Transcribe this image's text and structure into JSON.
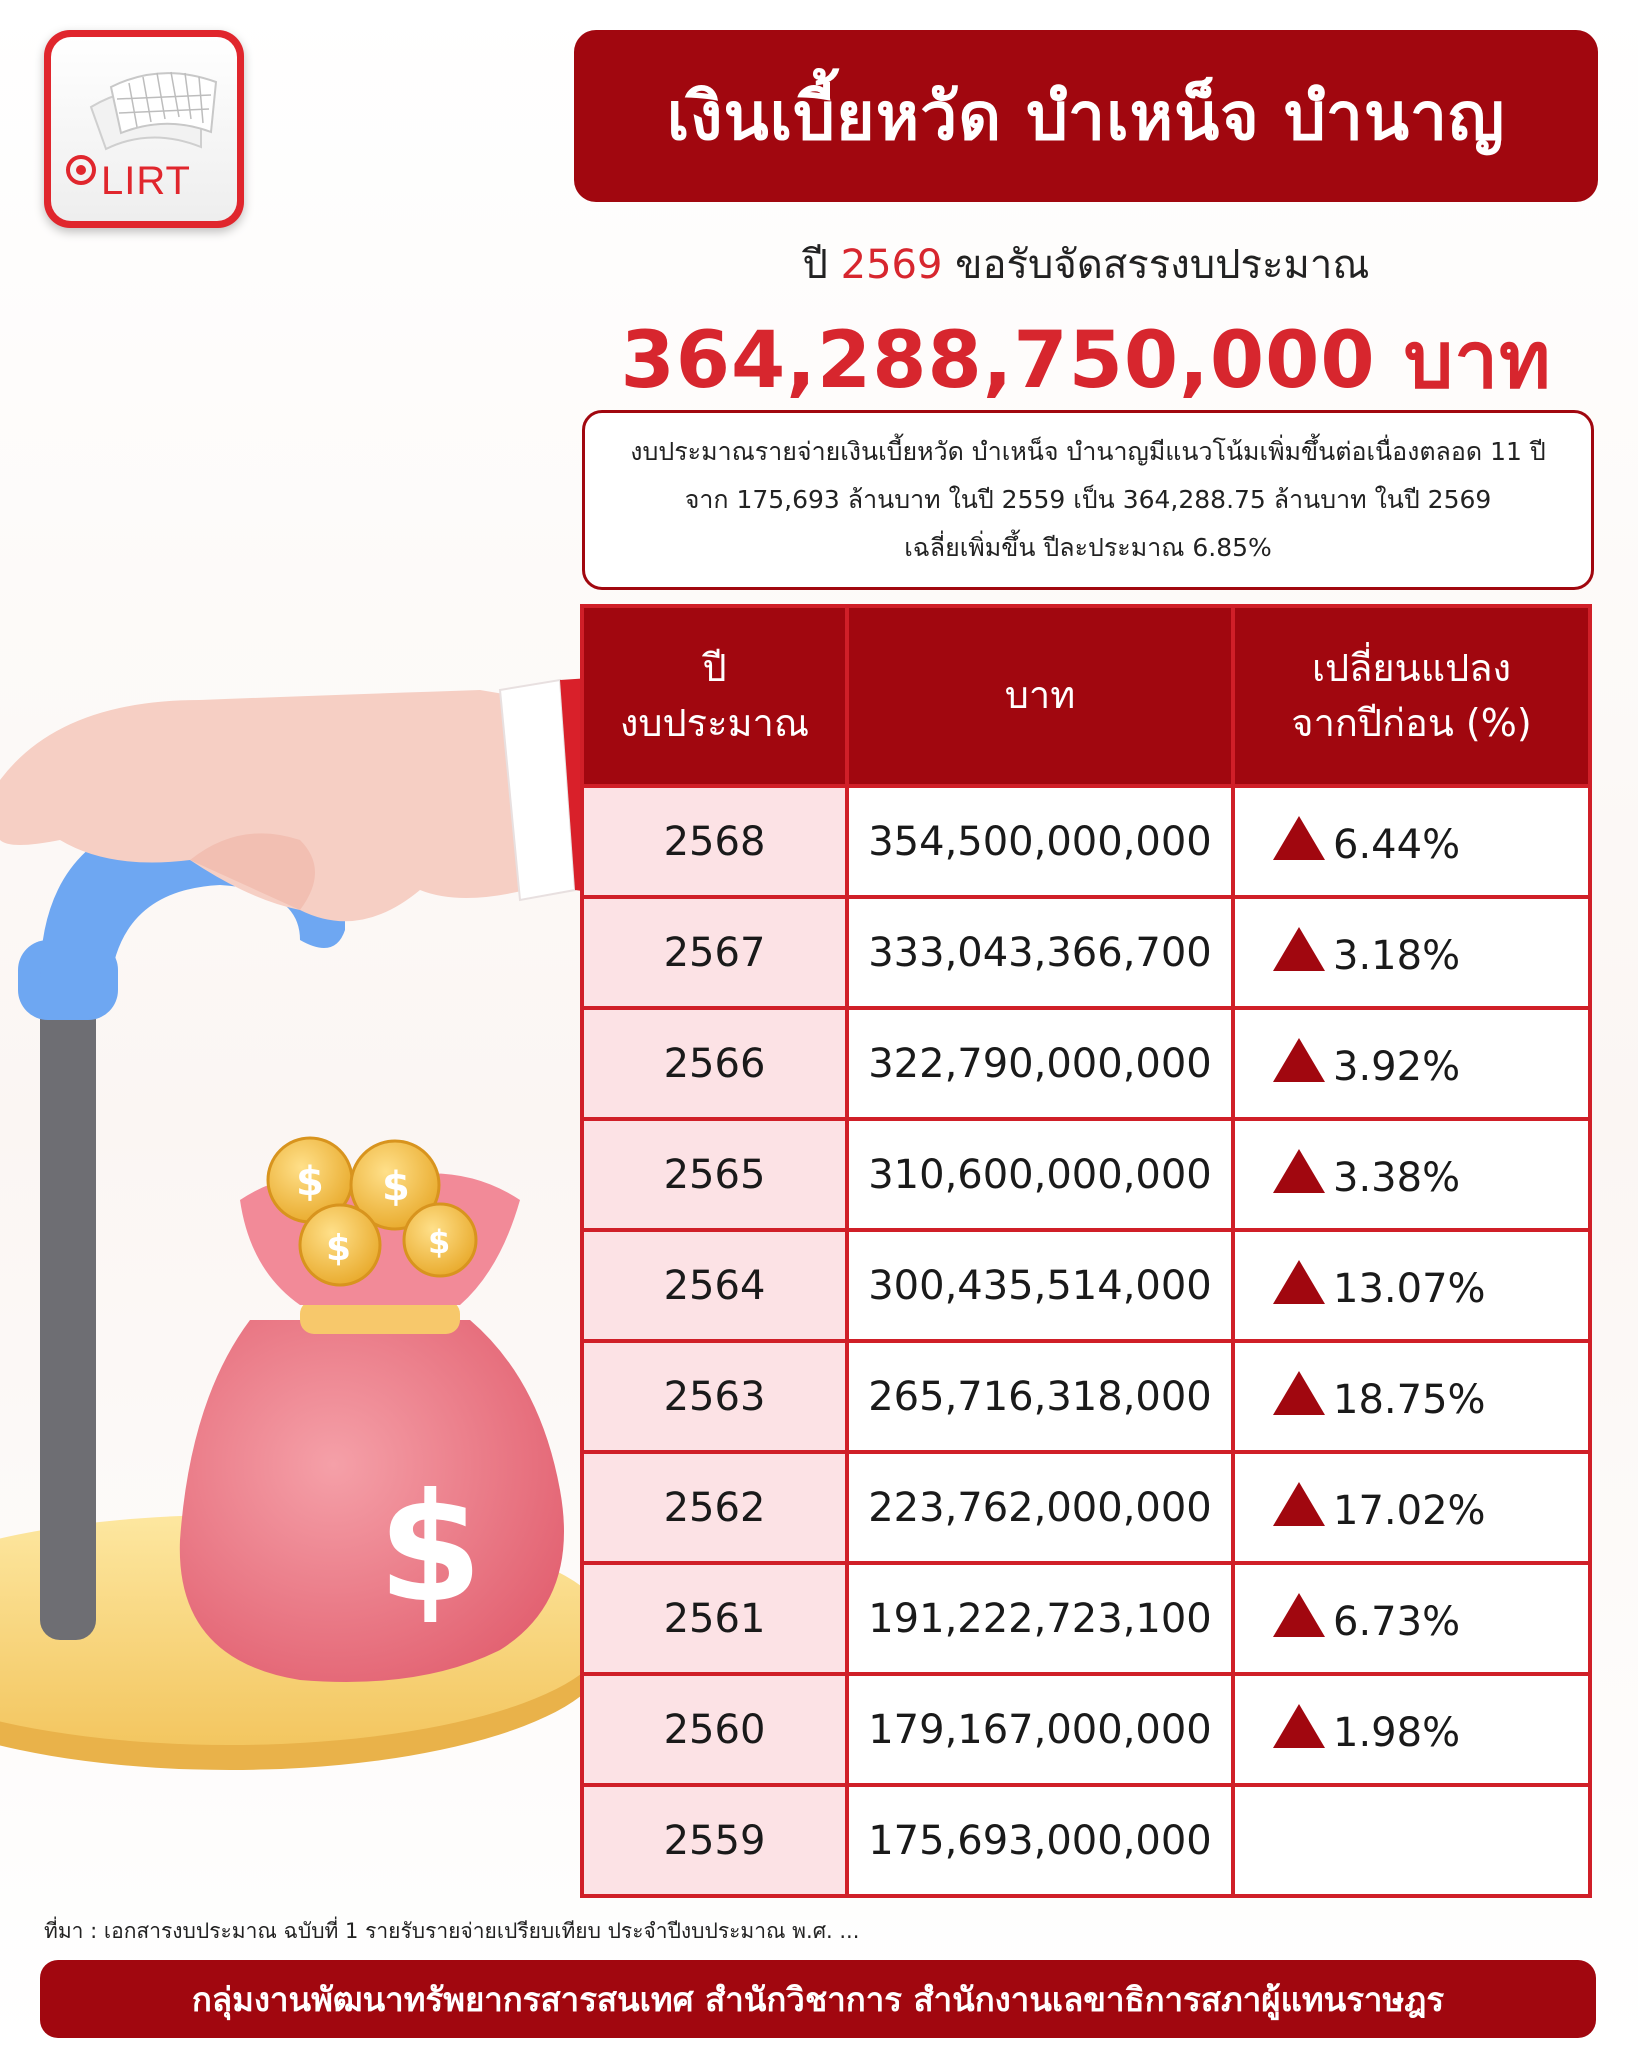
{
  "logo": {
    "text": "LIRT"
  },
  "header": {
    "title": "เงินเบี้ยหวัด บำเหน็จ บำนาญ",
    "subtitle_prefix": "ปี",
    "subtitle_year": "2569",
    "subtitle_suffix": "ขอรับจัดสรรงบประมาณ",
    "amount": "364,288,750,000 บาท"
  },
  "summary": {
    "line1": "งบประมาณรายจ่ายเงินเบี้ยหวัด บำเหน็จ บำนาญมีแนวโน้มเพิ่มขึ้นต่อเนื่องตลอด 11 ปี",
    "line2": "จาก 175,693 ล้านบาท ในปี 2559 เป็น 364,288.75 ล้านบาท ในปี 2569",
    "line3": "เฉลี่ยเพิ่มขึ้น ปีละประมาณ 6.85%"
  },
  "table": {
    "header_year_line1": "ปี",
    "header_year_line2": "งบประมาณ",
    "header_baht": "บาท",
    "header_change_line1": "เปลี่ยนแปลง",
    "header_change_line2": "จากปีก่อน (%)",
    "rows": [
      {
        "year": "2568",
        "baht": "354,500,000,000",
        "change": "6.44%"
      },
      {
        "year": "2567",
        "baht": "333,043,366,700",
        "change": "3.18%"
      },
      {
        "year": "2566",
        "baht": "322,790,000,000",
        "change": "3.92%"
      },
      {
        "year": "2565",
        "baht": "310,600,000,000",
        "change": "3.38%"
      },
      {
        "year": "2564",
        "baht": "300,435,514,000",
        "change": "13.07%"
      },
      {
        "year": "2563",
        "baht": "265,716,318,000",
        "change": "18.75%"
      },
      {
        "year": "2562",
        "baht": "223,762,000,000",
        "change": "17.02%"
      },
      {
        "year": "2561",
        "baht": "191,222,723,100",
        "change": "6.73%"
      },
      {
        "year": "2560",
        "baht": "179,167,000,000",
        "change": "1.98%"
      },
      {
        "year": "2559",
        "baht": "175,693,000,000",
        "change": ""
      }
    ]
  },
  "source": "ที่มา :  เอกสารงบประมาณ ฉบับที่ 1 รายรับรายจ่ายเปรียบเทียบ ประจำปีงบประมาณ พ.ศ. ...",
  "footer": "กลุ่มงานพัฒนาทรัพยากรสารสนเทศ สำนักวิชาการ สำนักงานเลขาธิการสภาผู้แทนราษฎร",
  "colors": {
    "primary": "#a1070f",
    "accent": "#d7262e",
    "row_pink": "#fce2e5"
  },
  "icons": {
    "change_indicator": "up-triangle-icon"
  }
}
